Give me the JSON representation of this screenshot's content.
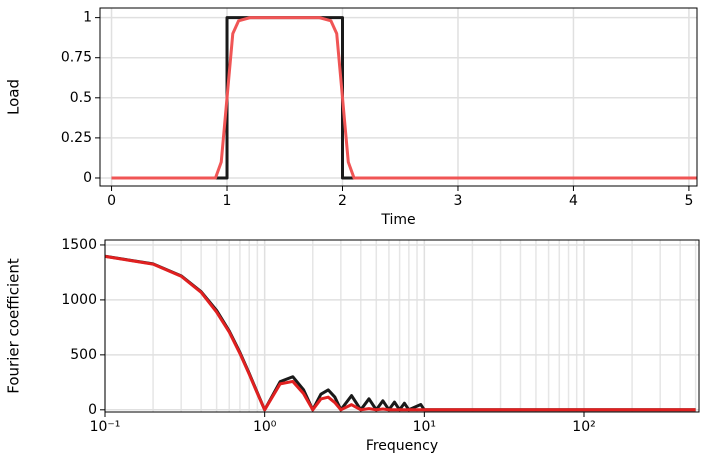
{
  "chart_data": [
    {
      "type": "line",
      "xlabel": "Time",
      "ylabel": "Load",
      "x": [
        0,
        1,
        1,
        2,
        2,
        5.07
      ],
      "xlim": [
        -0.1,
        5.07
      ],
      "ylim": [
        -0.05,
        1.06
      ],
      "xticks": [
        0,
        1,
        2,
        3,
        4,
        5
      ],
      "yticks": [
        0,
        0.25,
        0.5,
        0.75,
        1
      ],
      "grid": true,
      "series": [
        {
          "color": "#1a1a1a",
          "x": [
            0,
            1,
            1,
            2,
            2,
            5.07
          ],
          "values": [
            0,
            0,
            1,
            1,
            0,
            0
          ]
        },
        {
          "color": "#f05555",
          "x": [
            0,
            0.9,
            0.95,
            1,
            1.05,
            1.1,
            1.2,
            1.8,
            1.9,
            1.95,
            2,
            2.05,
            2.1,
            5.07
          ],
          "values": [
            0,
            0,
            0.1,
            0.5,
            0.9,
            0.98,
            1,
            1,
            0.98,
            0.9,
            0.5,
            0.1,
            0,
            0
          ]
        }
      ]
    },
    {
      "type": "line",
      "xlabel": "Frequency",
      "ylabel": "Fourier coefficient",
      "xlog": true,
      "xlim": [
        0.1,
        525
      ],
      "ylim": [
        -20,
        1545
      ],
      "xticks": [
        {
          "value": 0.1,
          "label": "10⁻¹"
        },
        {
          "value": 1,
          "label": "10⁰"
        },
        {
          "value": 10,
          "label": "10¹"
        },
        {
          "value": 100,
          "label": "10²"
        }
      ],
      "yticks": [
        0,
        500,
        1000,
        1500
      ],
      "grid": true,
      "series": [
        {
          "color": "#1a1a1a",
          "x": [
            0.1,
            0.2,
            0.3,
            0.4,
            0.5,
            0.6,
            0.7,
            0.8,
            0.9,
            1,
            1.25,
            1.5,
            1.75,
            2,
            2.25,
            2.5,
            2.75,
            3,
            3.5,
            4,
            4.5,
            5,
            5.5,
            6,
            6.5,
            7,
            7.5,
            8,
            9.5,
            10,
            20,
            100,
            500
          ],
          "values": [
            1397,
            1328,
            1219,
            1075,
            904,
            717,
            522,
            332,
            155,
            0,
            256,
            301,
            183,
            0,
            142,
            181,
            116,
            0,
            129,
            0,
            100,
            0,
            82,
            0,
            70,
            0,
            60,
            0,
            48,
            0,
            0,
            0,
            0
          ]
        },
        {
          "color": "#e02020",
          "x": [
            0.1,
            0.2,
            0.3,
            0.4,
            0.5,
            0.6,
            0.7,
            0.8,
            0.9,
            1,
            1.25,
            1.5,
            1.75,
            2,
            2.25,
            2.5,
            2.75,
            3,
            3.5,
            4,
            4.5,
            5,
            5.5,
            6,
            10,
            100,
            500
          ],
          "values": [
            1396,
            1325,
            1215,
            1069,
            889,
            707,
            512,
            324,
            150,
            0,
            236,
            258,
            148,
            0,
            99,
            115,
            66,
            0,
            47,
            0,
            11,
            0,
            7,
            0,
            0,
            0,
            0
          ]
        }
      ]
    }
  ]
}
